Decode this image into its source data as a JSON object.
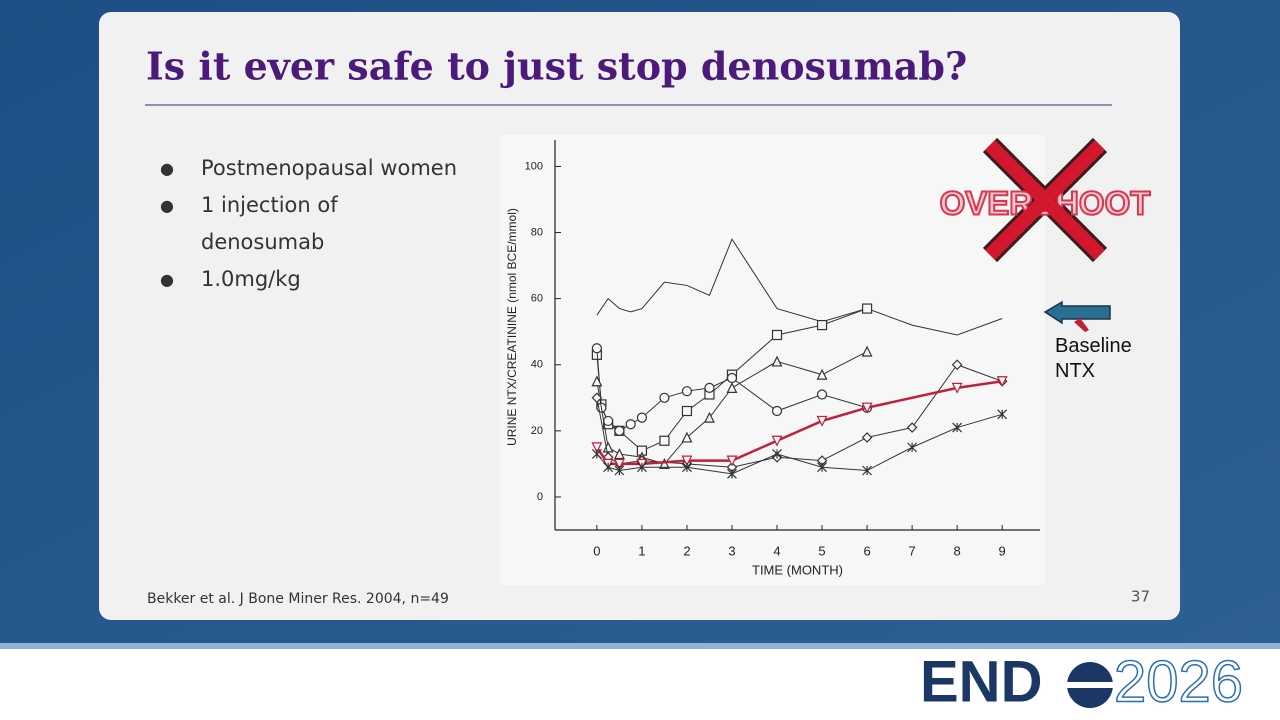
{
  "slide": {
    "title": "Is it ever safe to just stop denosumab?",
    "bullets": [
      "Postmenopausal women",
      "1 injection of denosumab",
      "1.0mg/kg"
    ],
    "citation": "Bekker et al. J Bone Miner Res. 2004, n=49",
    "page_number": "37",
    "logo": {
      "left": "END",
      "right": "2026"
    }
  },
  "chart_data": {
    "type": "line",
    "x_label": "TIME (MONTH)",
    "y_label": "URINE NTX/CREATININE (nmol BCE/mmol)",
    "annotations": {
      "overshoot": "OVERSHOOT",
      "baseline": "Baseline NTX"
    },
    "xlim": [
      -0.93,
      9.84
    ],
    "ylim": [
      -10,
      108
    ],
    "xticks": [
      0,
      1,
      2,
      3,
      4,
      5,
      6,
      7,
      8,
      9
    ],
    "yticks": [
      0,
      20,
      40,
      60,
      80,
      100
    ],
    "series": [
      {
        "color": "#333333",
        "marker": "none",
        "x": [
          0,
          0.25,
          0.5,
          0.75,
          1,
          1.5,
          2,
          2.5,
          3,
          4,
          5,
          6,
          7,
          8,
          9
        ],
        "values": [
          55,
          60,
          57,
          56,
          57,
          65,
          64,
          61,
          78,
          57,
          53,
          57,
          52,
          49,
          54
        ]
      },
      {
        "color": "#333333",
        "marker": "square",
        "x": [
          0,
          0.1,
          0.25,
          0.5,
          1,
          1.5,
          2,
          2.5,
          3,
          4,
          5,
          6
        ],
        "values": [
          43,
          28,
          22,
          20,
          14,
          17,
          26,
          31,
          37,
          49,
          52,
          57
        ]
      },
      {
        "color": "#333333",
        "marker": "circle",
        "x": [
          0,
          0.1,
          0.25,
          0.5,
          0.75,
          1,
          1.5,
          2,
          2.5,
          3,
          4,
          5,
          6
        ],
        "values": [
          45,
          27,
          23,
          20,
          22,
          24,
          30,
          32,
          33,
          36,
          26,
          31,
          27
        ]
      },
      {
        "color": "#333333",
        "marker": "triangle-up",
        "x": [
          0,
          0.25,
          0.5,
          1,
          1.5,
          2,
          2.5,
          3,
          4,
          5,
          6
        ],
        "values": [
          35,
          15,
          13,
          12,
          10,
          18,
          24,
          33,
          41,
          37,
          44
        ]
      },
      {
        "color": "#333333",
        "marker": "diamond",
        "x": [
          0,
          0.25,
          0.5,
          1,
          2,
          3,
          4,
          5,
          6,
          7,
          8,
          9
        ],
        "values": [
          30,
          12,
          10,
          11,
          10,
          9,
          12,
          11,
          18,
          21,
          40,
          35
        ]
      },
      {
        "color": "#c0203a",
        "marker": "triangle-down",
        "x": [
          0,
          0.25,
          0.5,
          1,
          2,
          3,
          4,
          5,
          6,
          8,
          9
        ],
        "values": [
          15,
          10,
          10,
          10,
          11,
          11,
          17,
          23,
          27,
          33,
          35
        ]
      },
      {
        "color": "#333333",
        "marker": "star",
        "x": [
          0,
          0.25,
          0.5,
          1,
          2,
          3,
          4,
          5,
          6,
          7,
          8,
          9
        ],
        "values": [
          13,
          9,
          8,
          9,
          9,
          7,
          13,
          9,
          8,
          15,
          21,
          25
        ]
      }
    ]
  }
}
